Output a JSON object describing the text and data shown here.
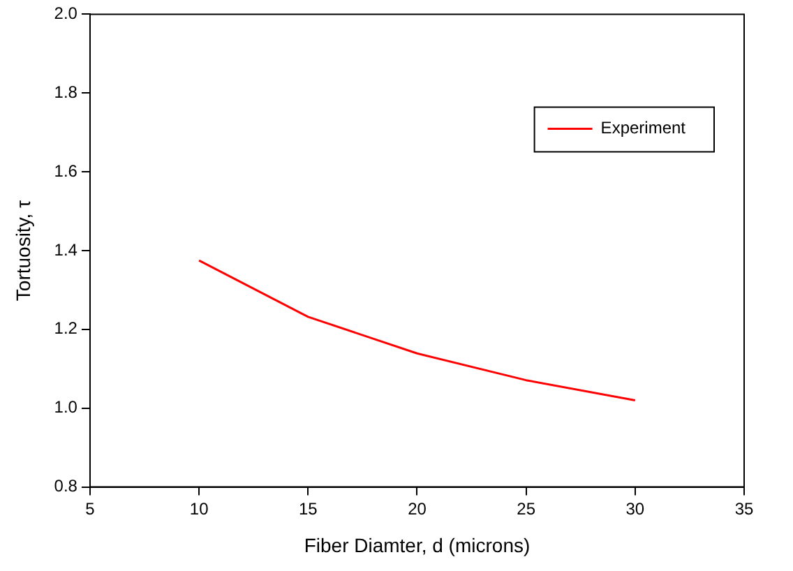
{
  "chart_data": {
    "type": "line",
    "xlabel": "Fiber Diamter, d (microns)",
    "ylabel": "Tortuosity, τ",
    "x": [
      10,
      15,
      20,
      25,
      30
    ],
    "series": [
      {
        "name": "Experiment",
        "color": "#ff0000",
        "values": [
          1.375,
          1.232,
          1.139,
          1.071,
          1.02
        ]
      }
    ],
    "xlim": [
      5,
      35
    ],
    "xticks": [
      5,
      10,
      15,
      20,
      25,
      30,
      35
    ],
    "ylim": [
      0.8,
      2.0
    ],
    "yticks": [
      0.8,
      {
        "value": 1,
        "label": "1.0"
      },
      1.2,
      1.4,
      1.6,
      1.8,
      {
        "value": 2,
        "label": "2.0"
      }
    ],
    "grid": false,
    "legend": "top right",
    "marker": "none",
    "line_style": "solid"
  }
}
